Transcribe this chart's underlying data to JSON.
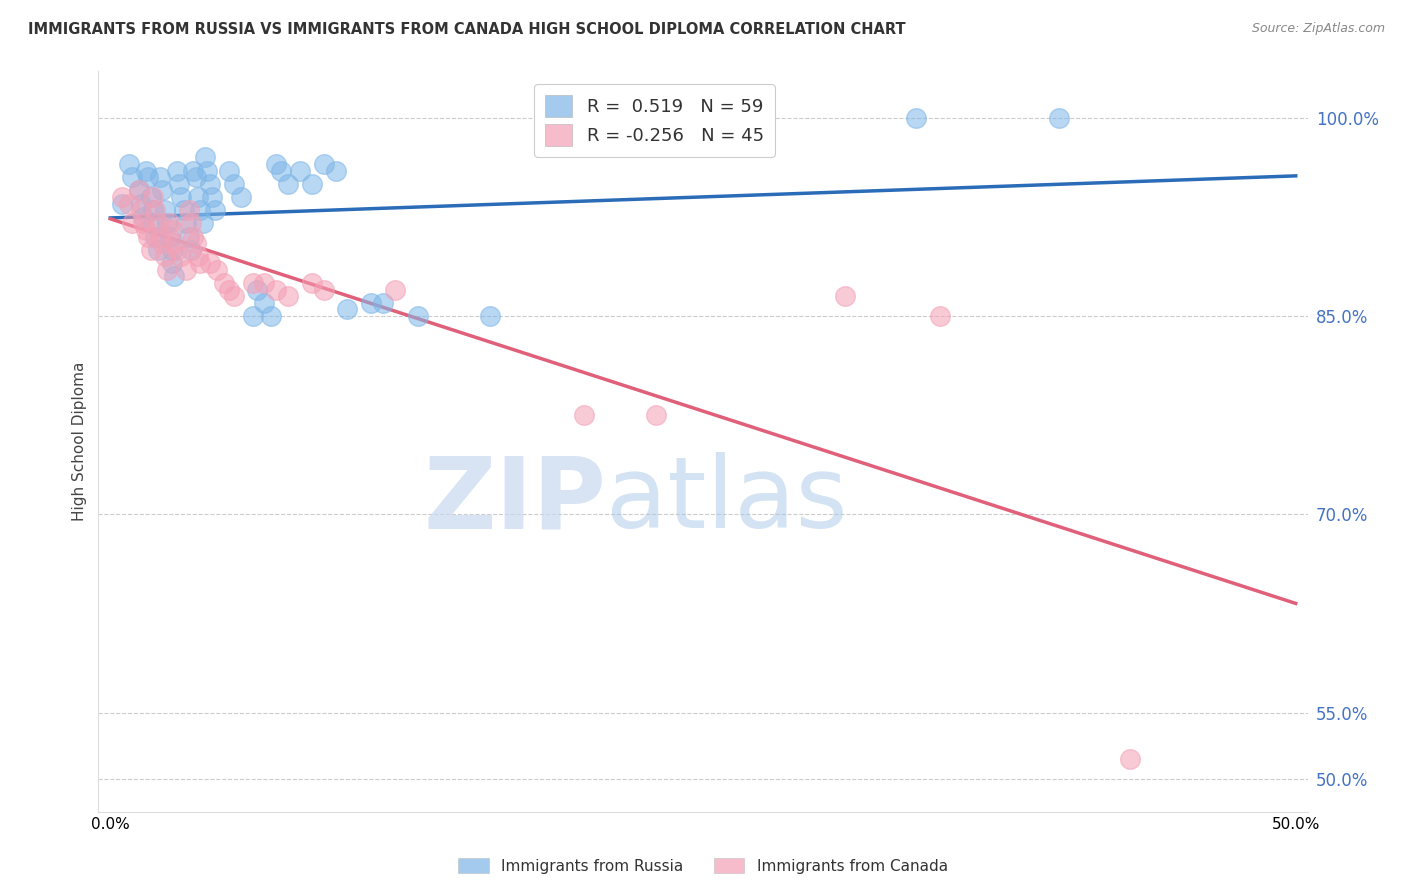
{
  "title": "IMMIGRANTS FROM RUSSIA VS IMMIGRANTS FROM CANADA HIGH SCHOOL DIPLOMA CORRELATION CHART",
  "source": "Source: ZipAtlas.com",
  "ylabel": "High School Diploma",
  "y_ticks": [
    0.5,
    0.55,
    0.7,
    0.85,
    1.0
  ],
  "y_tick_labels": [
    "50.0%",
    "55.0%",
    "70.0%",
    "85.0%",
    "100.0%"
  ],
  "x_ticks": [
    0.0,
    0.5
  ],
  "x_tick_labels": [
    "0.0%",
    "50.0%"
  ],
  "xlim": [
    -0.005,
    0.505
  ],
  "ylim": [
    0.475,
    1.035
  ],
  "russia_R": 0.519,
  "russia_N": 59,
  "canada_R": -0.256,
  "canada_N": 45,
  "russia_color": "#7EB6E8",
  "canada_color": "#F4A0B5",
  "russia_line_color": "#2B6CB8",
  "canada_line_color": "#E0607A",
  "legend_russia_label": "Immigrants from Russia",
  "legend_canada_label": "Immigrants from Canada",
  "russia_points": [
    [
      0.005,
      0.935
    ],
    [
      0.008,
      0.965
    ],
    [
      0.009,
      0.955
    ],
    [
      0.012,
      0.945
    ],
    [
      0.013,
      0.935
    ],
    [
      0.014,
      0.925
    ],
    [
      0.015,
      0.96
    ],
    [
      0.016,
      0.955
    ],
    [
      0.017,
      0.94
    ],
    [
      0.018,
      0.93
    ],
    [
      0.018,
      0.92
    ],
    [
      0.019,
      0.91
    ],
    [
      0.02,
      0.9
    ],
    [
      0.021,
      0.955
    ],
    [
      0.022,
      0.945
    ],
    [
      0.023,
      0.93
    ],
    [
      0.024,
      0.92
    ],
    [
      0.025,
      0.91
    ],
    [
      0.026,
      0.9
    ],
    [
      0.026,
      0.89
    ],
    [
      0.027,
      0.88
    ],
    [
      0.028,
      0.96
    ],
    [
      0.029,
      0.95
    ],
    [
      0.03,
      0.94
    ],
    [
      0.031,
      0.93
    ],
    [
      0.032,
      0.92
    ],
    [
      0.033,
      0.91
    ],
    [
      0.034,
      0.9
    ],
    [
      0.035,
      0.96
    ],
    [
      0.036,
      0.955
    ],
    [
      0.037,
      0.94
    ],
    [
      0.038,
      0.93
    ],
    [
      0.039,
      0.92
    ],
    [
      0.04,
      0.97
    ],
    [
      0.041,
      0.96
    ],
    [
      0.042,
      0.95
    ],
    [
      0.043,
      0.94
    ],
    [
      0.044,
      0.93
    ],
    [
      0.05,
      0.96
    ],
    [
      0.052,
      0.95
    ],
    [
      0.055,
      0.94
    ],
    [
      0.06,
      0.85
    ],
    [
      0.062,
      0.87
    ],
    [
      0.065,
      0.86
    ],
    [
      0.068,
      0.85
    ],
    [
      0.07,
      0.965
    ],
    [
      0.072,
      0.96
    ],
    [
      0.075,
      0.95
    ],
    [
      0.08,
      0.96
    ],
    [
      0.085,
      0.95
    ],
    [
      0.09,
      0.965
    ],
    [
      0.095,
      0.96
    ],
    [
      0.1,
      0.855
    ],
    [
      0.11,
      0.86
    ],
    [
      0.115,
      0.86
    ],
    [
      0.13,
      0.85
    ],
    [
      0.16,
      0.85
    ],
    [
      0.34,
      1.0
    ],
    [
      0.4,
      1.0
    ]
  ],
  "canada_points": [
    [
      0.005,
      0.94
    ],
    [
      0.008,
      0.935
    ],
    [
      0.009,
      0.92
    ],
    [
      0.012,
      0.945
    ],
    [
      0.013,
      0.93
    ],
    [
      0.014,
      0.92
    ],
    [
      0.015,
      0.915
    ],
    [
      0.016,
      0.91
    ],
    [
      0.017,
      0.9
    ],
    [
      0.018,
      0.94
    ],
    [
      0.019,
      0.93
    ],
    [
      0.02,
      0.92
    ],
    [
      0.021,
      0.91
    ],
    [
      0.022,
      0.905
    ],
    [
      0.023,
      0.895
    ],
    [
      0.024,
      0.885
    ],
    [
      0.025,
      0.92
    ],
    [
      0.026,
      0.915
    ],
    [
      0.027,
      0.905
    ],
    [
      0.028,
      0.9
    ],
    [
      0.03,
      0.895
    ],
    [
      0.032,
      0.885
    ],
    [
      0.033,
      0.93
    ],
    [
      0.034,
      0.92
    ],
    [
      0.035,
      0.91
    ],
    [
      0.036,
      0.905
    ],
    [
      0.037,
      0.895
    ],
    [
      0.038,
      0.89
    ],
    [
      0.042,
      0.89
    ],
    [
      0.045,
      0.885
    ],
    [
      0.048,
      0.875
    ],
    [
      0.05,
      0.87
    ],
    [
      0.052,
      0.865
    ],
    [
      0.06,
      0.875
    ],
    [
      0.065,
      0.875
    ],
    [
      0.07,
      0.87
    ],
    [
      0.075,
      0.865
    ],
    [
      0.085,
      0.875
    ],
    [
      0.09,
      0.87
    ],
    [
      0.12,
      0.87
    ],
    [
      0.2,
      0.775
    ],
    [
      0.23,
      0.775
    ],
    [
      0.31,
      0.865
    ],
    [
      0.35,
      0.85
    ],
    [
      0.43,
      0.515
    ]
  ],
  "watermark_zip": "ZIP",
  "watermark_atlas": "atlas",
  "background_color": "#FFFFFF"
}
